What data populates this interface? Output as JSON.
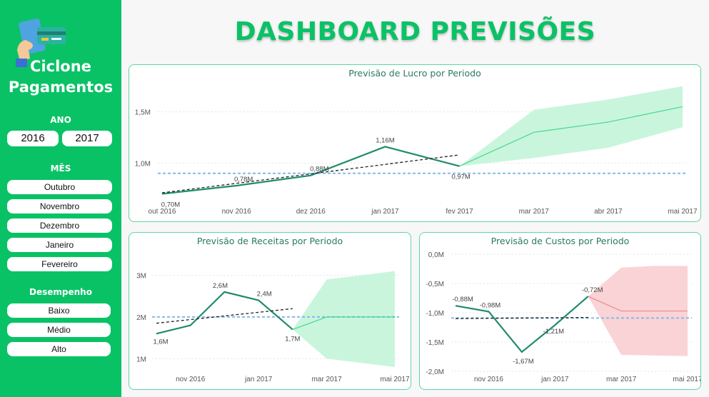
{
  "page": {
    "title": "DASHBOARD PREVISÕES"
  },
  "sidebar": {
    "brand_line1": "Ciclone",
    "brand_line2": "Pagamentos",
    "ano_label": "ANO",
    "years": [
      "2016",
      "2017"
    ],
    "mes_label": "MÊS",
    "months": [
      "Outubro",
      "Novembro",
      "Dezembro",
      "Janeiro",
      "Fevereiro"
    ],
    "desempenho_label": "Desempenho",
    "desempenho": [
      "Baixo",
      "Médio",
      "Alto"
    ],
    "logo_icon": "hand-payment-card-icon"
  },
  "colors": {
    "brand_green": "#0ac266",
    "line": "#1f8c6e",
    "forecast_line": "#44d98b",
    "forecast_band": "#c9f5dd",
    "cost_forecast_line": "#e88a93",
    "cost_forecast_band": "#f9d3d6",
    "average_line": "#84b9ea",
    "trend_line": "#222222"
  },
  "chart_data": [
    {
      "id": "lucro",
      "type": "line",
      "title": "Previsão de Lucro por Periodo",
      "x_ticks": [
        "out 2016",
        "nov 2016",
        "dez 2016",
        "jan 2017",
        "fev 2017",
        "mar 2017",
        "abr 2017",
        "mai 2017"
      ],
      "y_ticks": [
        "1,0M",
        "1,5M"
      ],
      "y_tick_values": [
        1.0,
        1.5
      ],
      "ylim": [
        0.62,
        1.72
      ],
      "actual": {
        "x": [
          0,
          1,
          2,
          3,
          4
        ],
        "values": [
          0.7,
          0.78,
          0.88,
          1.16,
          0.97
        ],
        "labels": [
          "0,70M",
          "0,78M",
          "0,88M",
          "1,16M",
          "0,97M"
        ]
      },
      "forecast": {
        "x": [
          4,
          5,
          6,
          7
        ],
        "values": [
          0.97,
          1.3,
          1.4,
          1.55
        ],
        "lower": [
          0.97,
          1.05,
          1.15,
          1.35
        ],
        "upper": [
          0.97,
          1.52,
          1.62,
          1.75
        ]
      },
      "average": 0.9,
      "trend": {
        "x": [
          0,
          4
        ],
        "values": [
          0.71,
          1.08
        ]
      }
    },
    {
      "id": "receitas",
      "type": "line",
      "title": "Previsão de Receitas por Periodo",
      "x_ticks": [
        "nov 2016",
        "jan 2017",
        "mar 2017",
        "mai 2017"
      ],
      "x_tick_positions": [
        1,
        3,
        5,
        7
      ],
      "y_ticks": [
        "1M",
        "2M",
        "3M"
      ],
      "y_tick_values": [
        1,
        2,
        3
      ],
      "ylim": [
        0.8,
        3.3
      ],
      "actual": {
        "x": [
          0,
          1,
          2,
          3,
          4
        ],
        "values": [
          1.6,
          1.8,
          2.6,
          2.4,
          1.7
        ],
        "labels": [
          "1,6M",
          "",
          "2,6M",
          "2,4M",
          "1,7M"
        ]
      },
      "forecast": {
        "x": [
          4,
          5,
          6,
          7
        ],
        "values": [
          1.7,
          2.0,
          2.0,
          2.0
        ],
        "lower": [
          1.7,
          1.0,
          0.9,
          0.8
        ],
        "upper": [
          1.7,
          2.9,
          3.0,
          3.1
        ]
      },
      "average": 2.0,
      "trend": {
        "x": [
          0,
          4
        ],
        "values": [
          1.85,
          2.2
        ]
      }
    },
    {
      "id": "custos",
      "type": "line",
      "title": "Previsão de Custos por Periodo",
      "x_ticks": [
        "nov 2016",
        "jan 2017",
        "mar 2017",
        "mai 2017"
      ],
      "x_tick_positions": [
        1,
        3,
        5,
        7
      ],
      "y_ticks": [
        "-2,0M",
        "-1,5M",
        "-1,0M",
        "-0,5M",
        "0,0M"
      ],
      "y_tick_values": [
        -2.0,
        -1.5,
        -1.0,
        -0.5,
        0.0
      ],
      "ylim": [
        -2.0,
        0.0
      ],
      "actual": {
        "x": [
          0,
          1,
          2,
          3,
          4
        ],
        "values": [
          -0.88,
          -0.98,
          -1.67,
          -1.21,
          -0.72
        ],
        "labels": [
          "-0,88M",
          "-0,98M",
          "-1,67M",
          "-1,21M",
          "-0,72M"
        ]
      },
      "forecast": {
        "x": [
          4,
          5,
          6,
          7
        ],
        "values": [
          -0.72,
          -0.97,
          -0.97,
          -0.97
        ],
        "lower": [
          -0.72,
          -1.72,
          -1.73,
          -1.74
        ],
        "upper": [
          -0.72,
          -0.23,
          -0.2,
          -0.2
        ]
      },
      "average": -1.09,
      "trend": {
        "x": [
          0,
          4
        ],
        "values": [
          -1.1,
          -1.08
        ]
      }
    }
  ]
}
